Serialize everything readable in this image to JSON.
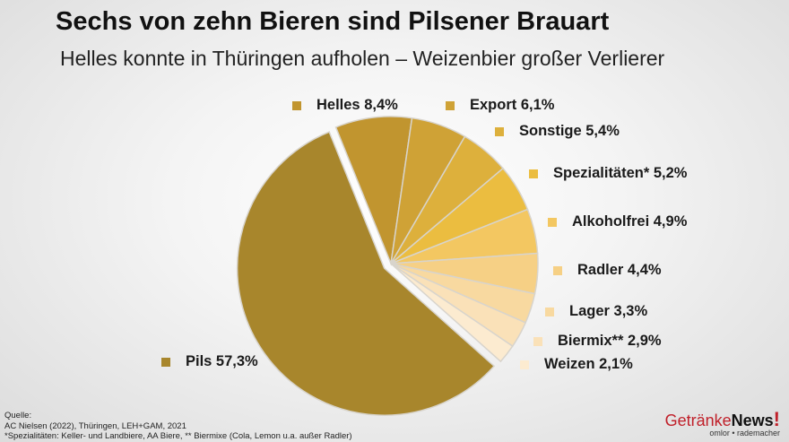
{
  "title": "Sechs von zehn Bieren sind Pilsener Brauart",
  "subtitle": "Helles konnte in Thüringen aufholen – Weizenbier großer Verlierer",
  "chart_data": {
    "type": "pie",
    "unit": "%",
    "slices": [
      {
        "label": "Helles",
        "value": 8.4,
        "text": "Helles 8,4%",
        "color": "#c1952f"
      },
      {
        "label": "Export",
        "value": 6.1,
        "text": "Export 6,1%",
        "color": "#cfa236"
      },
      {
        "label": "Sonstige",
        "value": 5.4,
        "text": "Sonstige 5,4%",
        "color": "#ddb03c"
      },
      {
        "label": "Spezialitäten*",
        "value": 5.2,
        "text": "Spezialitäten* 5,2%",
        "color": "#ebbd40"
      },
      {
        "label": "Alkoholfrei",
        "value": 4.9,
        "text": "Alkoholfrei 4,9%",
        "color": "#f3c761"
      },
      {
        "label": "Radler",
        "value": 4.4,
        "text": "Radler 4,4%",
        "color": "#f6d085"
      },
      {
        "label": "Lager",
        "value": 3.3,
        "text": "Lager 3,3%",
        "color": "#f8d9a0"
      },
      {
        "label": "Biermix**",
        "value": 2.9,
        "text": "Biermix** 2,9%",
        "color": "#fae1b8"
      },
      {
        "label": "Weizen",
        "value": 2.1,
        "text": "Weizen 2,1%",
        "color": "#fcebd0"
      },
      {
        "label": "Pils",
        "value": 57.3,
        "text": "Pils 57,3%",
        "color": "#a8862c",
        "exploded": true
      }
    ],
    "legend_placement": "labels beside slices"
  },
  "source": {
    "heading": "Quelle:",
    "line1": "AC Nielsen (2022), Thüringen, LEH+GAM, 2021",
    "line2": "*Spezialitäten: Keller- und Landbiere, AA Biere, ** Biermixe (Cola, Lemon u.a. außer Radler)"
  },
  "logo": {
    "part1": "Getränke",
    "part2": "News",
    "mark": "!",
    "tagline": "omlor • rademacher"
  }
}
